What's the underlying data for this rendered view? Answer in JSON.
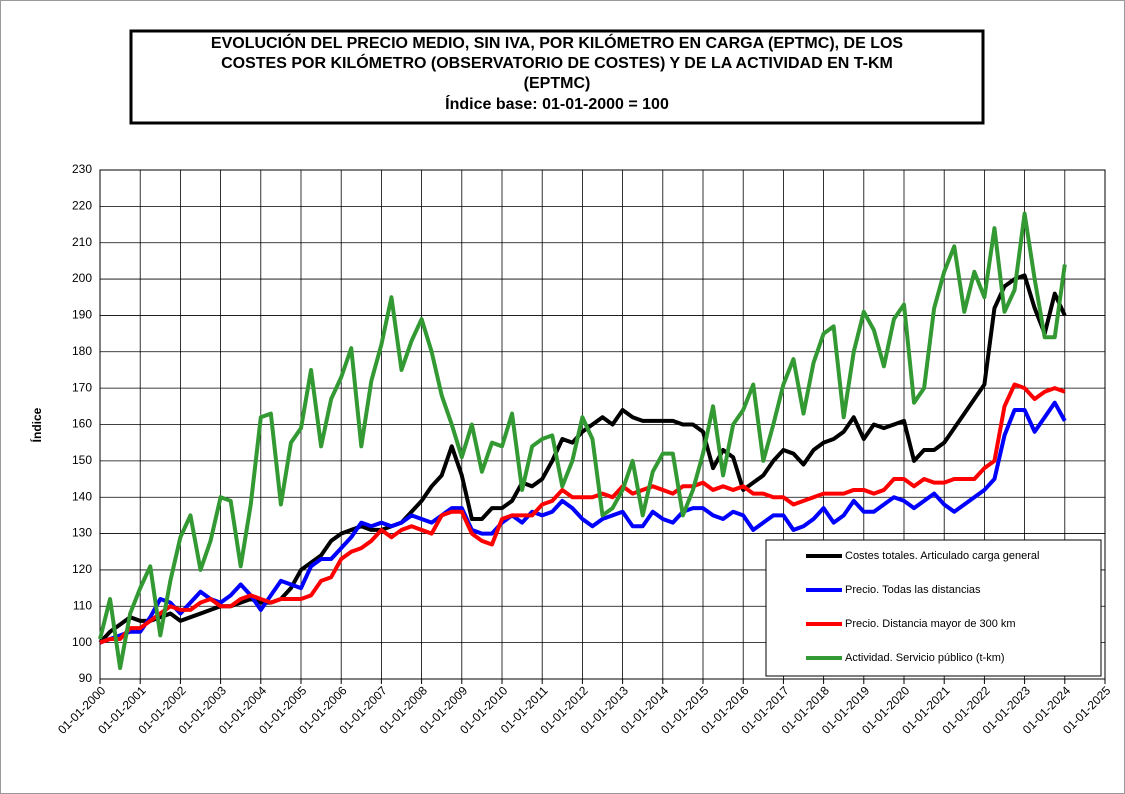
{
  "chart_data": {
    "type": "line",
    "title": [
      "EVOLUCIÓN DEL PRECIO MEDIO, SIN IVA, POR KILÓMETRO EN CARGA (EPTMC), DE LOS",
      "COSTES POR KILÓMETRO (OBSERVATORIO DE COSTES) Y DE LA ACTIVIDAD EN T-KM",
      "(EPTMC)"
    ],
    "subtitle": "Índice base: 01-01-2000 = 100",
    "ylabel": "Índice",
    "xlim": [
      2000,
      2025
    ],
    "ylim": [
      90,
      230
    ],
    "yticks": [
      90,
      100,
      110,
      120,
      130,
      140,
      150,
      160,
      170,
      180,
      190,
      200,
      210,
      220,
      230
    ],
    "xticks": [
      {
        "value": 2000,
        "label": "01-01-2000"
      },
      {
        "value": 2001,
        "label": "01-01-2001"
      },
      {
        "value": 2002,
        "label": "01-01-2002"
      },
      {
        "value": 2003,
        "label": "01-01-2003"
      },
      {
        "value": 2004,
        "label": "01-01-2004"
      },
      {
        "value": 2005,
        "label": "01-01-2005"
      },
      {
        "value": 2006,
        "label": "01-01-2006"
      },
      {
        "value": 2007,
        "label": "01-01-2007"
      },
      {
        "value": 2008,
        "label": "01-01-2008"
      },
      {
        "value": 2009,
        "label": "01-01-2009"
      },
      {
        "value": 2010,
        "label": "01-01-2010"
      },
      {
        "value": 2011,
        "label": "01-01-2011"
      },
      {
        "value": 2012,
        "label": "01-01-2012"
      },
      {
        "value": 2013,
        "label": "01-01-2013"
      },
      {
        "value": 2014,
        "label": "01-01-2014"
      },
      {
        "value": 2015,
        "label": "01-01-2015"
      },
      {
        "value": 2016,
        "label": "01-01-2016"
      },
      {
        "value": 2017,
        "label": "01-01-2017"
      },
      {
        "value": 2018,
        "label": "01-01-2018"
      },
      {
        "value": 2019,
        "label": "01-01-2019"
      },
      {
        "value": 2020,
        "label": "01-01-2020"
      },
      {
        "value": 2021,
        "label": "01-01-2021"
      },
      {
        "value": 2022,
        "label": "01-01-2022"
      },
      {
        "value": 2023,
        "label": "01-01-2023"
      },
      {
        "value": 2024,
        "label": "01-01-2024"
      },
      {
        "value": 2025,
        "label": "01-01-2025"
      }
    ],
    "grid": true,
    "legend": "lower-right",
    "x": [
      2000,
      2000.25,
      2000.5,
      2000.75,
      2001,
      2001.25,
      2001.5,
      2001.75,
      2002,
      2002.25,
      2002.5,
      2002.75,
      2003,
      2003.25,
      2003.5,
      2003.75,
      2004,
      2004.25,
      2004.5,
      2004.75,
      2005,
      2005.25,
      2005.5,
      2005.75,
      2006,
      2006.25,
      2006.5,
      2006.75,
      2007,
      2007.25,
      2007.5,
      2007.75,
      2008,
      2008.25,
      2008.5,
      2008.75,
      2009,
      2009.25,
      2009.5,
      2009.75,
      2010,
      2010.25,
      2010.5,
      2010.75,
      2011,
      2011.25,
      2011.5,
      2011.75,
      2012,
      2012.25,
      2012.5,
      2012.75,
      2013,
      2013.25,
      2013.5,
      2013.75,
      2014,
      2014.25,
      2014.5,
      2014.75,
      2015,
      2015.25,
      2015.5,
      2015.75,
      2016,
      2016.25,
      2016.5,
      2016.75,
      2017,
      2017.25,
      2017.5,
      2017.75,
      2018,
      2018.25,
      2018.5,
      2018.75,
      2019,
      2019.25,
      2019.5,
      2019.75,
      2020,
      2020.25,
      2020.5,
      2020.75,
      2021,
      2021.25,
      2021.5,
      2021.75,
      2022,
      2022.25,
      2022.5,
      2022.75,
      2023,
      2023.25,
      2023.5,
      2023.75,
      2024
    ],
    "series": [
      {
        "name": "Costes totales. Articulado carga general",
        "color": "#000000",
        "values": [
          100,
          103,
          105,
          107,
          106,
          106,
          107,
          108,
          106,
          107,
          108,
          109,
          110,
          110,
          111,
          112,
          111,
          111,
          112,
          115,
          120,
          122,
          124,
          128,
          130,
          131,
          132,
          131,
          131,
          132,
          133,
          136,
          139,
          143,
          146,
          154,
          146,
          134,
          134,
          137,
          137,
          139,
          144,
          143,
          145,
          150,
          156,
          155,
          158,
          160,
          162,
          160,
          164,
          162,
          161,
          161,
          161,
          161,
          160,
          160,
          158,
          148,
          153,
          151,
          142,
          144,
          146,
          150,
          153,
          152,
          149,
          153,
          155,
          156,
          158,
          162,
          156,
          160,
          159,
          160,
          161,
          150,
          153,
          153,
          155,
          159,
          163,
          167,
          171,
          192,
          198,
          200,
          201,
          192,
          185,
          196,
          190
        ]
      },
      {
        "name": "Precio. Todas las distancias",
        "color": "#0000ff",
        "values": [
          100,
          101,
          102,
          103,
          103,
          107,
          112,
          111,
          108,
          111,
          114,
          112,
          111,
          113,
          116,
          113,
          109,
          113,
          117,
          116,
          115,
          121,
          123,
          123,
          126,
          129,
          133,
          132,
          133,
          132,
          133,
          135,
          134,
          133,
          135,
          137,
          137,
          131,
          130,
          130,
          133,
          135,
          133,
          136,
          135,
          136,
          139,
          137,
          134,
          132,
          134,
          135,
          136,
          132,
          132,
          136,
          134,
          133,
          136,
          137,
          137,
          135,
          134,
          136,
          135,
          131,
          133,
          135,
          135,
          131,
          132,
          134,
          137,
          133,
          135,
          139,
          136,
          136,
          138,
          140,
          139,
          137,
          139,
          141,
          138,
          136,
          138,
          140,
          142,
          145,
          157,
          164,
          164,
          158,
          162,
          166,
          161
        ]
      },
      {
        "name": "Precio. Distancia mayor de 300 km",
        "color": "#ff0000",
        "values": [
          100,
          101,
          101,
          104,
          104,
          106,
          108,
          110,
          109,
          109,
          111,
          112,
          110,
          110,
          112,
          113,
          112,
          111,
          112,
          112,
          112,
          113,
          117,
          118,
          123,
          125,
          126,
          128,
          131,
          129,
          131,
          132,
          131,
          130,
          135,
          136,
          136,
          130,
          128,
          127,
          134,
          135,
          135,
          135,
          138,
          139,
          142,
          140,
          140,
          140,
          141,
          140,
          143,
          141,
          142,
          143,
          142,
          141,
          143,
          143,
          144,
          142,
          143,
          142,
          143,
          141,
          141,
          140,
          140,
          138,
          139,
          140,
          141,
          141,
          141,
          142,
          142,
          141,
          142,
          145,
          145,
          143,
          145,
          144,
          144,
          145,
          145,
          145,
          148,
          150,
          165,
          171,
          170,
          167,
          169,
          170,
          169
        ]
      },
      {
        "name": "Actividad. Servicio público (t-km)",
        "color": "#339933",
        "values": [
          101,
          112,
          93,
          108,
          115,
          121,
          102,
          117,
          129,
          135,
          120,
          128,
          140,
          139,
          121,
          138,
          162,
          163,
          138,
          155,
          159,
          175,
          154,
          167,
          173,
          181,
          154,
          172,
          182,
          195,
          175,
          183,
          189,
          180,
          168,
          160,
          151,
          160,
          147,
          155,
          154,
          163,
          142,
          154,
          156,
          157,
          143,
          150,
          162,
          156,
          135,
          137,
          142,
          150,
          135,
          147,
          152,
          152,
          135,
          142,
          152,
          165,
          146,
          160,
          164,
          171,
          150,
          160,
          171,
          178,
          163,
          177,
          185,
          187,
          162,
          180,
          191,
          186,
          176,
          189,
          193,
          166,
          170,
          192,
          202,
          209,
          191,
          202,
          195,
          214,
          191,
          197,
          218,
          200,
          184,
          184,
          204
        ]
      }
    ]
  }
}
